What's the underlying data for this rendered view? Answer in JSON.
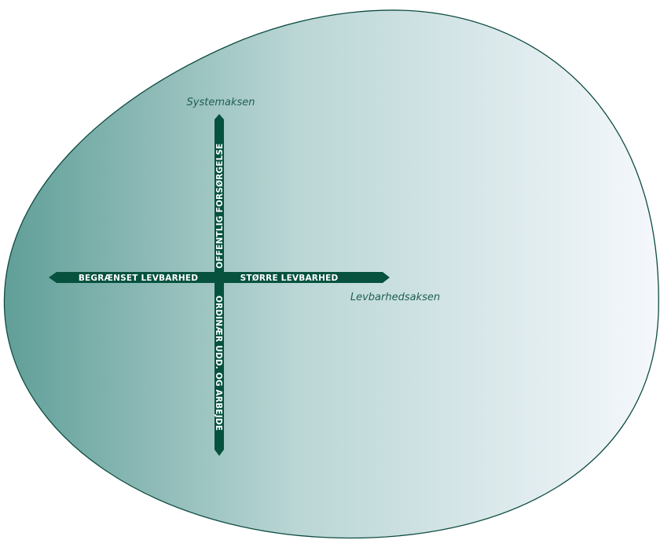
{
  "colors": {
    "axis": "#06523f",
    "label_text": "#ffffff",
    "caption_text": "#1f5f55",
    "blob_outline": "#0e4c40",
    "gradient_dark": "#5f9e97",
    "gradient_light": "#f5f8fd"
  },
  "system_axis": {
    "caption": "Systemaksen",
    "top_label": "OFFENTLIG FORSØRGELSE",
    "bottom_label": "ORDINÆR UDD. OG ARBEJDE"
  },
  "livability_axis": {
    "caption": "Levbarhedsaksen",
    "left_label": "BEGRÆNSET LEVBARHED",
    "right_label": "STØRRE LEVBARHED"
  }
}
